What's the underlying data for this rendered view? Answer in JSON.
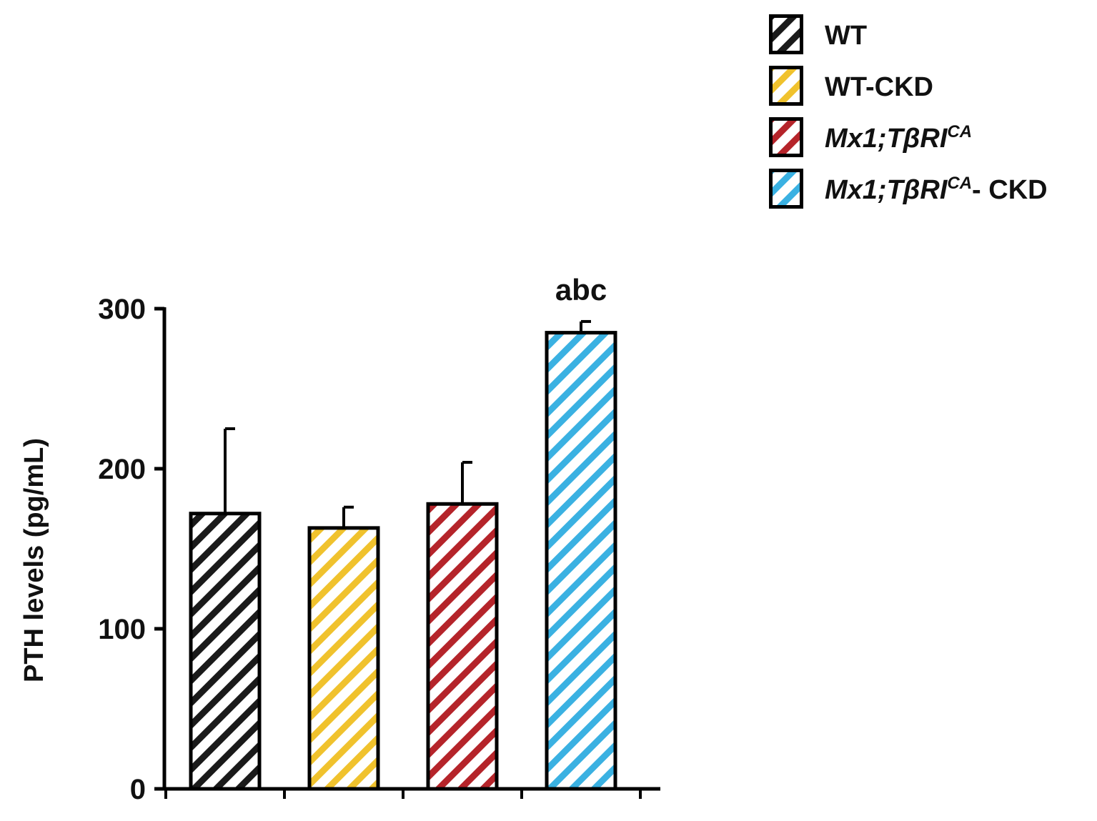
{
  "chart_data": {
    "type": "bar",
    "categories": [
      "WT",
      "WT-CKD",
      "Mx1;TβRI^CA",
      "Mx1;TβRI^CA- CKD"
    ],
    "series": [
      {
        "values": [
          172,
          163,
          178,
          285
        ],
        "errors": [
          53,
          13,
          26,
          7
        ]
      }
    ],
    "colors": [
      "#1a1a1a",
      "#f0c22d",
      "#b5242a",
      "#3ab1e2"
    ],
    "pattern": "diagonal-stripes",
    "ylabel": "PTH levels  (pg/mL)",
    "ylim": [
      0,
      300
    ],
    "yticks": [
      "0",
      "100",
      "200",
      "300"
    ],
    "annotations": [
      {
        "category_index": 3,
        "text": "abc"
      }
    ],
    "legend": {
      "position": "top-right",
      "entries": [
        {
          "main": "WT",
          "sup": "",
          "suffix": "",
          "italic": false
        },
        {
          "main": "WT-CKD",
          "sup": "",
          "suffix": "",
          "italic": false
        },
        {
          "main": "Mx1;TβRI",
          "sup": "CA",
          "suffix": "",
          "italic": true
        },
        {
          "main": "Mx1;TβRI",
          "sup": "CA",
          "suffix": "- CKD",
          "italic": true
        }
      ]
    },
    "grid": false
  }
}
